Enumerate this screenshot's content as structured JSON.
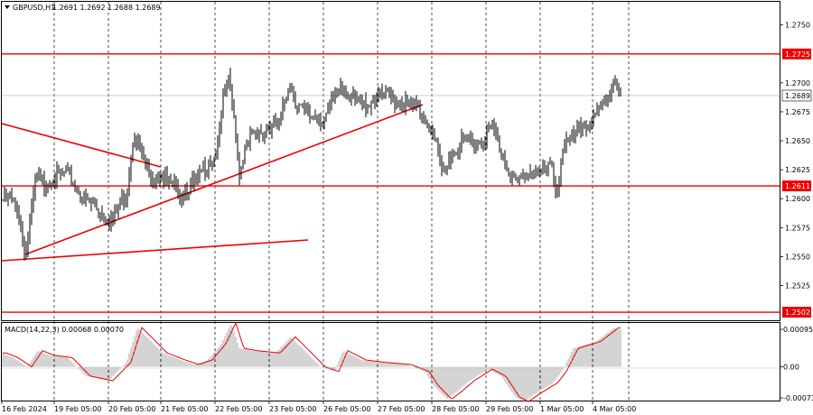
{
  "main": {
    "symbol": "GBPUSD,H1",
    "ohlc": "1.2691 1.2692 1.2688 1.2689",
    "y_ticks": [
      "1.2750",
      "1.2725",
      "1.2700",
      "1.2689",
      "1.2675",
      "1.2650",
      "1.2625",
      "1.2611",
      "1.2600",
      "1.2575",
      "1.2550",
      "1.2525",
      "1.2502"
    ],
    "levels": [
      {
        "label": "1.2725",
        "value": 1.2725,
        "color": "#ee0000"
      },
      {
        "label": "1.2611",
        "value": 1.2611,
        "color": "#ee0000"
      },
      {
        "label": "1.2502",
        "value": 1.2502,
        "color": "#ee0000"
      }
    ],
    "current_price": {
      "label": "1.2689",
      "value": 1.2689
    }
  },
  "macd": {
    "label": "MACD(14,22,3) 0.00068 0.00070",
    "y_ticks": [
      "0.00095",
      "0.00",
      "-0.00073"
    ]
  },
  "x_ticks": [
    "16 Feb 2024",
    "19 Feb 05:00",
    "20 Feb 05:00",
    "21 Feb 05:00",
    "22 Feb 05:00",
    "23 Feb 05:00",
    "26 Feb 05:00",
    "27 Feb 05:00",
    "28 Feb 05:00",
    "29 Feb 05:00",
    "1 Mar 05:00",
    "4 Mar 05:00"
  ],
  "chart_data": {
    "type": "line",
    "title": "GBPUSD,H1",
    "series": [
      {
        "name": "GBPUSD",
        "x": [
          "16 Feb 2024",
          "19 Feb 05:00",
          "20 Feb 05:00",
          "21 Feb 05:00",
          "22 Feb 05:00",
          "23 Feb 05:00",
          "26 Feb 05:00",
          "27 Feb 05:00",
          "28 Feb 05:00",
          "29 Feb 05:00",
          "1 Mar 05:00",
          "4 Mar 05:00"
        ],
        "values": [
          1.2595,
          1.2615,
          1.2585,
          1.2625,
          1.266,
          1.2665,
          1.2685,
          1.2685,
          1.264,
          1.2635,
          1.2625,
          1.268
        ]
      }
    ],
    "ylim": [
      1.2495,
      1.277
    ],
    "key_levels": [
      1.2725,
      1.2611,
      1.2502
    ],
    "macd": {
      "params": "14,22,3",
      "value": 0.00068,
      "signal": 0.0007,
      "ylim": [
        -0.00073,
        0.00095
      ]
    }
  }
}
